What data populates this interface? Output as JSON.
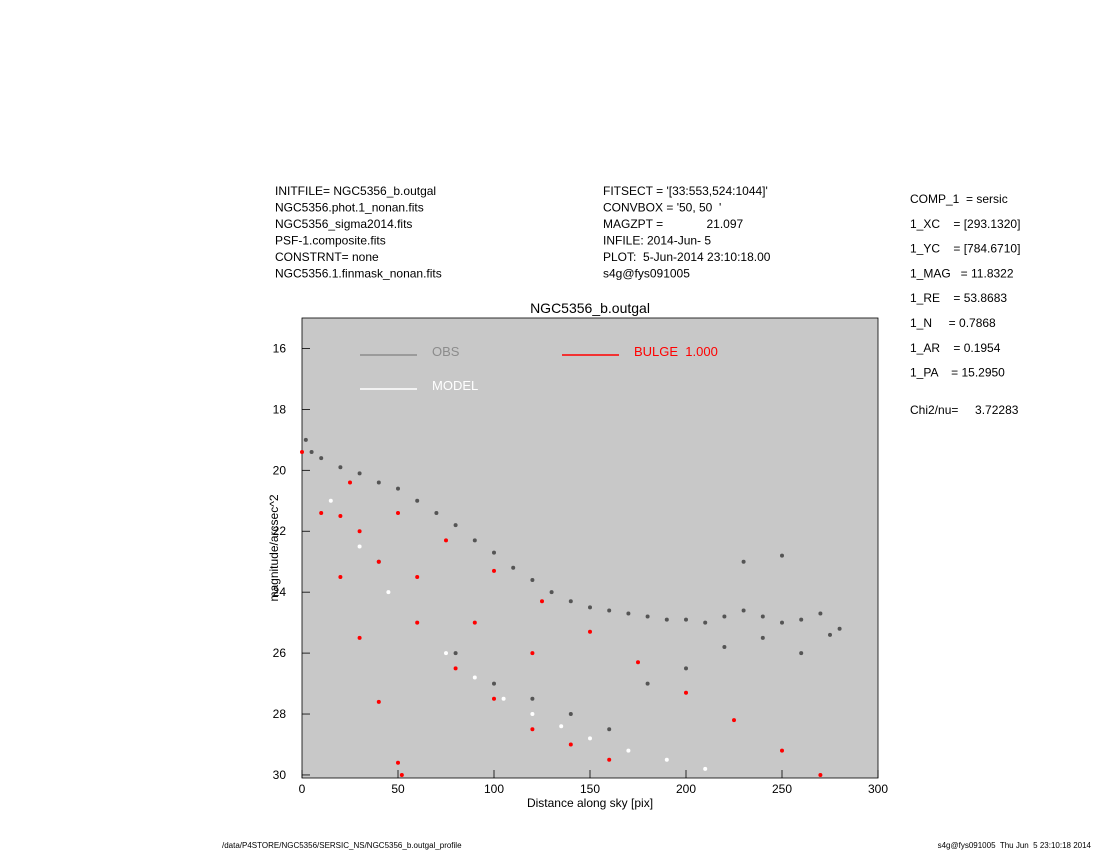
{
  "header": {
    "left": [
      "INITFILE= NGC5356_b.outgal",
      "NGC5356.phot.1_nonan.fits",
      "NGC5356_sigma2014.fits",
      "PSF-1.composite.fits",
      "CONSTRNT= none",
      "NGC5356.1.finmask_nonan.fits"
    ],
    "middle": [
      "FITSECT = '[33:553,524:1044]'",
      "CONVBOX = '50, 50  '",
      "MAGZPT =             21.097",
      "INFILE: 2014-Jun- 5",
      "PLOT:  5-Jun-2014 23:10:18.00",
      "s4g@fys091005"
    ],
    "right": [
      "COMP_1  = sersic",
      "1_XC    = [293.1320]",
      "1_YC    = [784.6710]",
      "1_MAG   = 11.8322",
      "1_RE    = 53.8683",
      "1_N     = 0.7868",
      "1_AR    = 0.1954",
      "1_PA    = 15.2950"
    ],
    "chi2": "Chi2/nu=     3.72283"
  },
  "footer": {
    "left": "/data/P4STORE/NGC5356/SERSIC_NS/NGC5356_b.outgal_profile",
    "right": "s4g@fys091005  Thu Jun  5 23:10:18 2014"
  },
  "chart_data": {
    "type": "scatter",
    "title": "NGC5356_b.outgal",
    "x_label": "Distance along sky [pix]",
    "y_label": "magnitude/arcsec^2",
    "xlim": [
      0,
      300
    ],
    "ylim": [
      15,
      30.1
    ],
    "y_inverted": true,
    "xticks": [
      0,
      50,
      100,
      150,
      200,
      250,
      300
    ],
    "yticks": [
      16,
      18,
      20,
      22,
      24,
      26,
      28,
      30
    ],
    "background": "#c8c8c8",
    "series": [
      {
        "name": "OBS",
        "color": "#555555",
        "legend_color": "#8c8c8c",
        "x": [
          2,
          5,
          10,
          20,
          30,
          40,
          50,
          60,
          70,
          80,
          90,
          100,
          110,
          120,
          130,
          140,
          150,
          160,
          170,
          180,
          190,
          200,
          210,
          220,
          230,
          240,
          250,
          260,
          270,
          280,
          40,
          60,
          80,
          100,
          120,
          140,
          160,
          180,
          200,
          220,
          240,
          260,
          275,
          230,
          250
        ],
        "y": [
          19,
          19.4,
          19.6,
          19.9,
          20.1,
          20.4,
          20.6,
          21,
          21.4,
          21.8,
          22.3,
          22.7,
          23.2,
          23.6,
          24,
          24.3,
          24.5,
          24.6,
          24.7,
          24.8,
          24.9,
          24.9,
          25,
          24.8,
          24.6,
          24.8,
          25,
          24.9,
          24.7,
          25.2,
          23,
          25,
          26,
          27,
          27.5,
          28,
          28.5,
          27,
          26.5,
          25.8,
          25.5,
          26,
          25.4,
          23,
          22.8
        ]
      },
      {
        "name": "MODEL",
        "color": "#ffffff",
        "legend_color": "#ffffff",
        "x": [
          15,
          30,
          45,
          60,
          75,
          90,
          105,
          120,
          135,
          150,
          170,
          190,
          210
        ],
        "y": [
          21,
          22.5,
          24,
          25,
          26,
          26.8,
          27.5,
          28,
          28.4,
          28.8,
          29.2,
          29.5,
          29.8
        ]
      },
      {
        "name": "BULGE  1.000",
        "color": "#ff0000",
        "legend_color": "#ff0000",
        "x": [
          0,
          10,
          20,
          30,
          40,
          50,
          52,
          25,
          50,
          75,
          100,
          125,
          150,
          175,
          200,
          225,
          250,
          270,
          20,
          40,
          60,
          80,
          100,
          120,
          140,
          160,
          30,
          60,
          90,
          120
        ],
        "y": [
          19.4,
          21.4,
          23.5,
          25.5,
          27.6,
          29.6,
          30,
          20.4,
          21.4,
          22.3,
          23.3,
          24.3,
          25.3,
          26.3,
          27.3,
          28.2,
          29.2,
          30,
          21.5,
          23,
          25,
          26.5,
          27.5,
          28.5,
          29,
          29.5,
          22,
          23.5,
          25,
          26
        ]
      }
    ]
  }
}
